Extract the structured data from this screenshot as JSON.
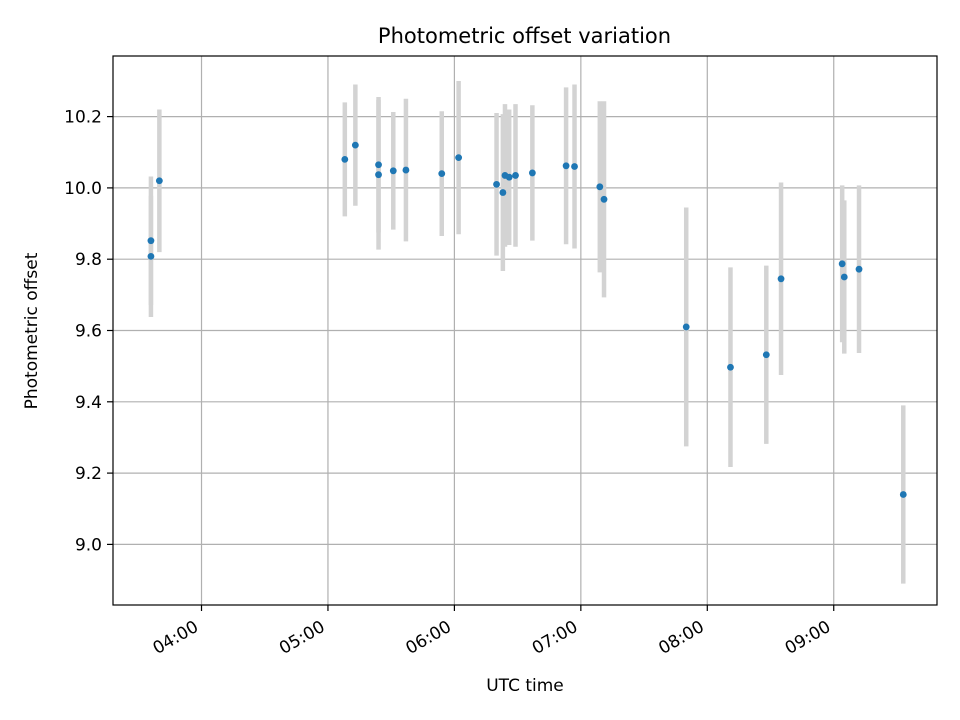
{
  "chart_data": {
    "type": "scatter",
    "title": "Photometric offset variation",
    "xlabel": "UTC time",
    "ylabel": "Photometric offset",
    "xlim": [
      "03:18",
      "09:49"
    ],
    "ylim": [
      8.83,
      10.37
    ],
    "x_ticks": [
      "04:00",
      "05:00",
      "06:00",
      "07:00",
      "08:00",
      "09:00"
    ],
    "y_ticks": [
      9.0,
      9.2,
      9.4,
      9.6,
      9.8,
      10.0,
      10.2
    ],
    "y_tick_labels": [
      "9.0",
      "9.2",
      "9.4",
      "9.6",
      "9.8",
      "10.0",
      "10.2"
    ],
    "grid": true,
    "legend": false,
    "colors": {
      "point": "#1f77b4",
      "errorbar": "#d3d3d3",
      "grid": "#b0b0b0"
    },
    "series": [
      {
        "points": [
          {
            "x": "03:36",
            "y": 9.852,
            "err": 0.18
          },
          {
            "x": "03:36",
            "y": 9.808,
            "err": 0.17
          },
          {
            "x": "03:40",
            "y": 10.02,
            "err": 0.2
          },
          {
            "x": "05:08",
            "y": 10.08,
            "err": 0.16
          },
          {
            "x": "05:13",
            "y": 10.12,
            "err": 0.17
          },
          {
            "x": "05:24",
            "y": 10.065,
            "err": 0.19
          },
          {
            "x": "05:24",
            "y": 10.037,
            "err": 0.21
          },
          {
            "x": "05:31",
            "y": 10.048,
            "err": 0.165
          },
          {
            "x": "05:37",
            "y": 10.05,
            "err": 0.2
          },
          {
            "x": "05:54",
            "y": 10.04,
            "err": 0.175
          },
          {
            "x": "06:02",
            "y": 10.085,
            "err": 0.215
          },
          {
            "x": "06:20",
            "y": 10.01,
            "err": 0.2
          },
          {
            "x": "06:23",
            "y": 9.987,
            "err": 0.22
          },
          {
            "x": "06:24",
            "y": 10.035,
            "err": 0.2
          },
          {
            "x": "06:26",
            "y": 10.03,
            "err": 0.19
          },
          {
            "x": "06:29",
            "y": 10.035,
            "err": 0.2
          },
          {
            "x": "06:37",
            "y": 10.042,
            "err": 0.19
          },
          {
            "x": "06:53",
            "y": 10.062,
            "err": 0.22
          },
          {
            "x": "06:57",
            "y": 10.06,
            "err": 0.23
          },
          {
            "x": "07:09",
            "y": 10.003,
            "err": 0.24
          },
          {
            "x": "07:11",
            "y": 9.968,
            "err": 0.275
          },
          {
            "x": "07:50",
            "y": 9.61,
            "err": 0.335
          },
          {
            "x": "08:11",
            "y": 9.497,
            "err": 0.28
          },
          {
            "x": "08:28",
            "y": 9.532,
            "err": 0.25
          },
          {
            "x": "08:35",
            "y": 9.745,
            "err": 0.27
          },
          {
            "x": "09:04",
            "y": 9.787,
            "err": 0.22
          },
          {
            "x": "09:05",
            "y": 9.75,
            "err": 0.215
          },
          {
            "x": "09:12",
            "y": 9.772,
            "err": 0.235
          },
          {
            "x": "09:33",
            "y": 9.14,
            "err": 0.25
          }
        ]
      }
    ]
  }
}
